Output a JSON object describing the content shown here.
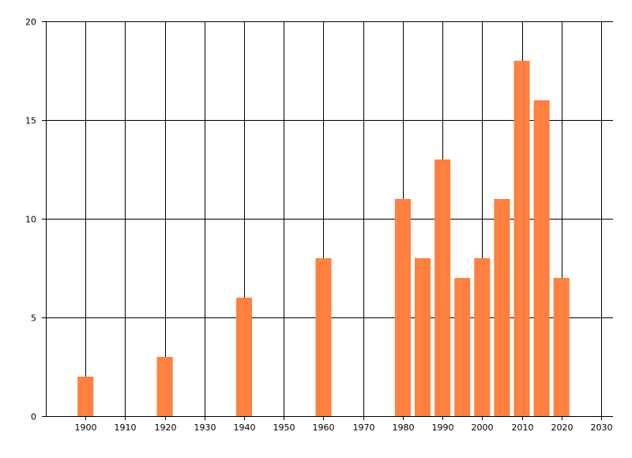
{
  "chart_data": {
    "type": "bar",
    "title": "",
    "xlabel": "",
    "ylabel": "",
    "x": [
      1900,
      1920,
      1940,
      1960,
      1980,
      1985,
      1990,
      1995,
      2000,
      2005,
      2010,
      2015,
      2020
    ],
    "values": [
      2,
      3,
      6,
      8,
      11,
      8,
      13,
      7,
      8,
      11,
      18,
      16,
      7
    ],
    "xlim": [
      1890,
      2033
    ],
    "ylim": [
      0,
      20
    ],
    "x_ticks": [
      1900,
      1910,
      1920,
      1930,
      1940,
      1950,
      1960,
      1970,
      1980,
      1990,
      2000,
      2010,
      2020,
      2030
    ],
    "y_ticks": [
      0,
      5,
      10,
      15,
      20
    ],
    "bar_width_years": 4,
    "grid": true,
    "legend": "none",
    "colors": {
      "bar": "#FF8040",
      "grid": "#000000",
      "background": "#ffffff"
    }
  }
}
